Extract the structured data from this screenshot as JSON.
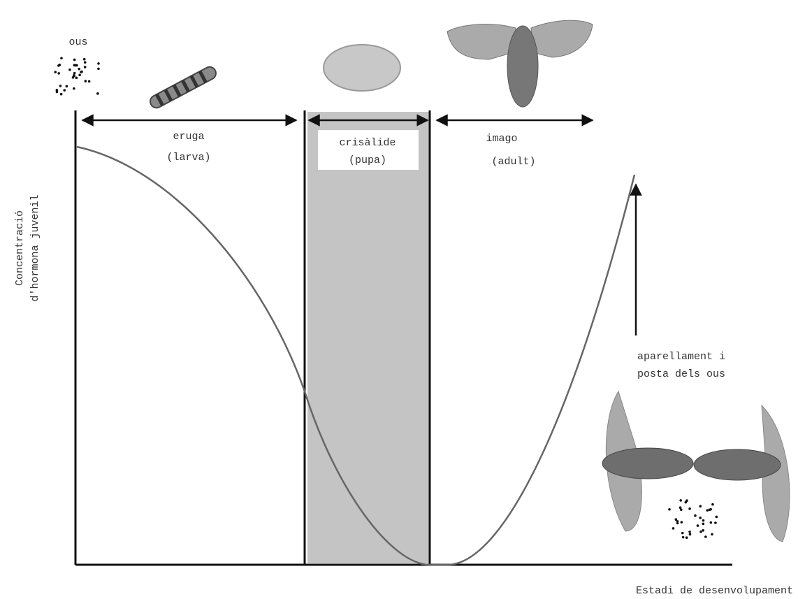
{
  "eggs_label": "ous",
  "stages": [
    {
      "name": "eruga",
      "sub": "(larva)"
    },
    {
      "name": "crisàlide",
      "sub": "(pupa)"
    },
    {
      "name": "imago",
      "sub": "(adult)"
    }
  ],
  "mating": {
    "line1": "aparellament i",
    "line2": "posta dels ous"
  },
  "y_axis_label": [
    "Concentració",
    "d'hormona juvenil"
  ],
  "x_axis_label": "Estadi de desenvolupament"
}
